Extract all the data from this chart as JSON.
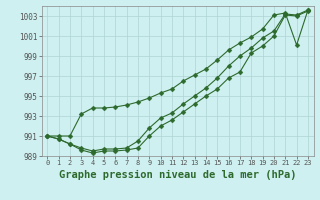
{
  "series": [
    [
      991.0,
      990.7,
      990.2,
      989.6,
      989.3,
      989.5,
      989.5,
      989.6,
      989.8,
      991.0,
      992.0,
      992.6,
      993.4,
      994.2,
      995.0,
      995.7,
      996.8,
      997.4,
      999.3,
      1000.0,
      1001.0,
      1003.1,
      1003.0,
      1003.5
    ],
    [
      991.0,
      990.7,
      990.2,
      989.8,
      989.5,
      989.7,
      989.7,
      989.8,
      990.5,
      991.8,
      992.8,
      993.3,
      994.2,
      995.0,
      995.8,
      996.8,
      998.0,
      999.0,
      999.8,
      1000.8,
      1001.5,
      1003.2,
      1003.1,
      1003.6
    ],
    [
      991.0,
      991.0,
      991.0,
      993.2,
      993.8,
      993.8,
      993.9,
      994.1,
      994.4,
      994.8,
      995.3,
      995.7,
      996.5,
      997.1,
      997.7,
      998.6,
      999.6,
      1000.3,
      1000.9,
      1001.7,
      1003.1,
      1003.3,
      1000.1,
      1003.6
    ]
  ],
  "line_color": "#2d6a2d",
  "marker_size": 2.5,
  "ylim": [
    989.0,
    1004.0
  ],
  "yticks": [
    989,
    991,
    993,
    995,
    997,
    999,
    1001,
    1003
  ],
  "xlim": [
    -0.5,
    23.5
  ],
  "xlabel": "Graphe pression niveau de la mer (hPa)",
  "bg_color": "#cff0f0",
  "grid_color": "#aed4d4",
  "xlabel_fontsize": 7.5
}
